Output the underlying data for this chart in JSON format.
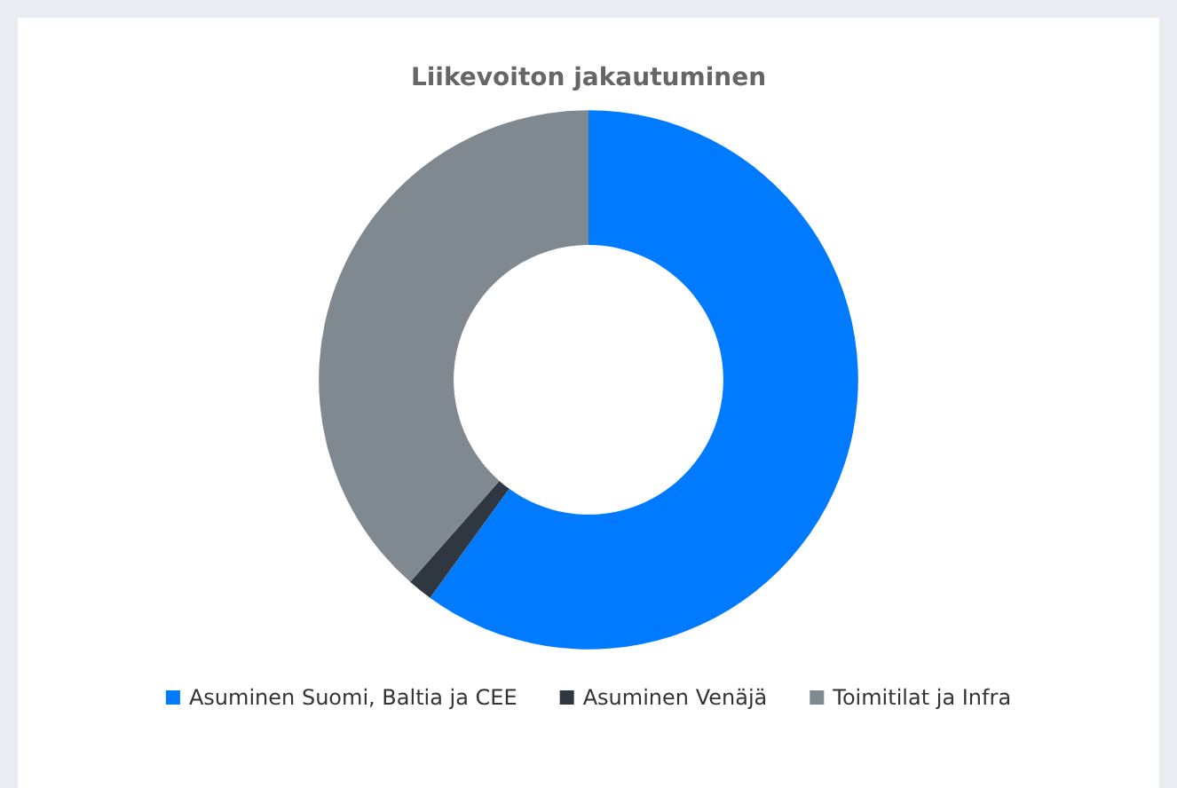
{
  "chart_data": {
    "type": "donut",
    "title": "Liikevoiton jakautuminen",
    "categories": [
      "Asuminen Suomi, Baltia ja CEE",
      "Asuminen Venäjä",
      "Toimitilat ja Infra"
    ],
    "values": [
      60,
      1.5,
      38.5
    ],
    "colors": [
      "#007bff",
      "#2f3740",
      "#7f898f"
    ],
    "legend": "bottom"
  }
}
